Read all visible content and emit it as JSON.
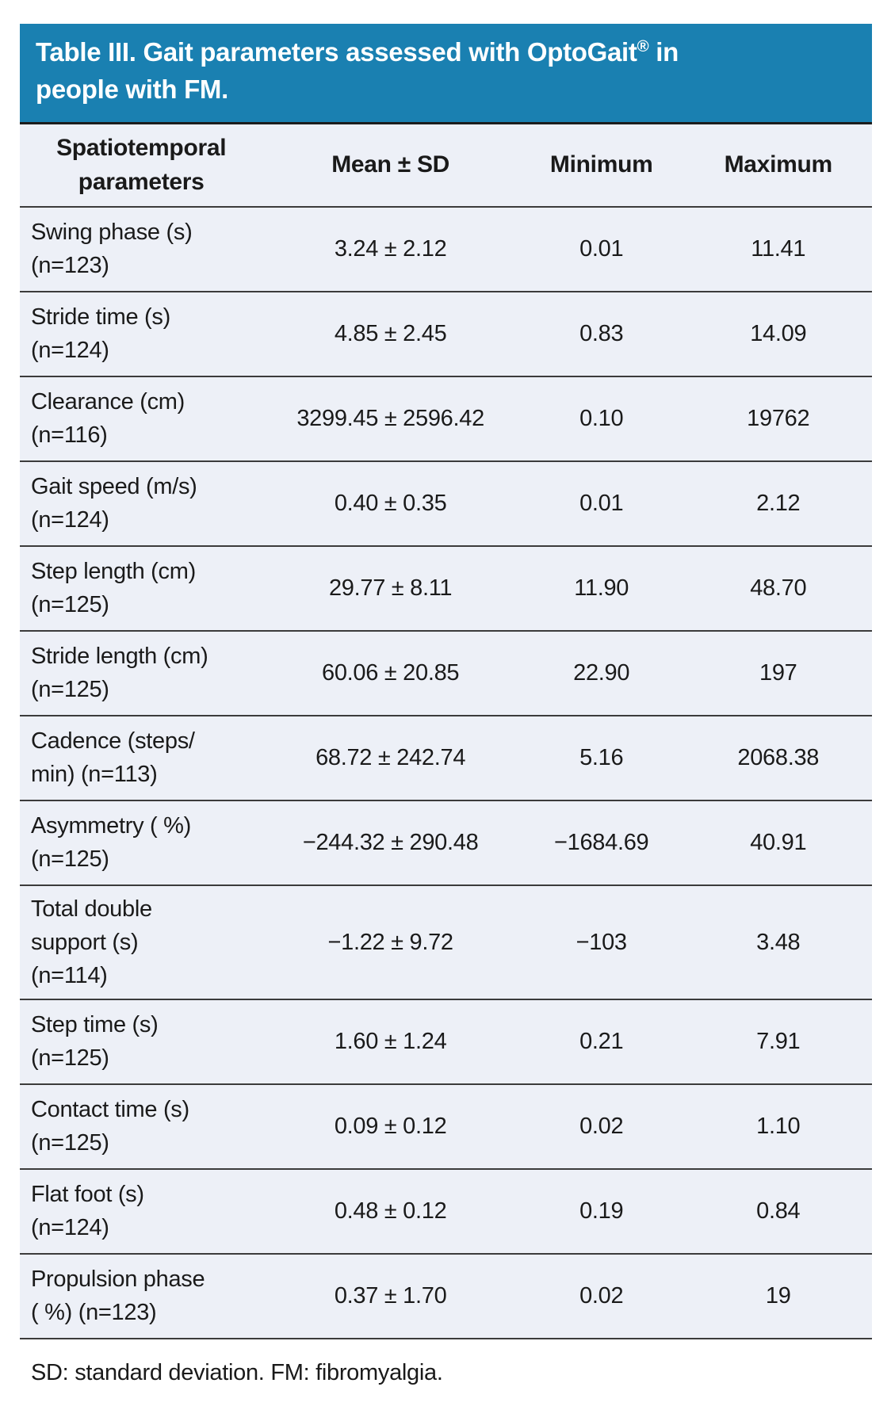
{
  "table": {
    "title": {
      "line1_pre": "Table III. Gait parameters assessed with OptoGait",
      "line1_sup": "®",
      "line1_post": " in",
      "line2": "people with FM."
    },
    "columns": {
      "param": [
        "Spatiotemporal",
        "parameters"
      ],
      "mean_sd": "Mean ± SD",
      "minimum": "Minimum",
      "maximum": "Maximum"
    },
    "rows": [
      {
        "param": [
          "Swing phase (s)",
          "(n=123)"
        ],
        "mean_sd": "3.24 ± 2.12",
        "min": "0.01",
        "max": "11.41"
      },
      {
        "param": [
          "Stride time (s)",
          "(n=124)"
        ],
        "mean_sd": "4.85 ± 2.45",
        "min": "0.83",
        "max": "14.09"
      },
      {
        "param": [
          "Clearance (cm)",
          "(n=116)"
        ],
        "mean_sd": "3299.45 ± 2596.42",
        "min": "0.10",
        "max": "19762"
      },
      {
        "param": [
          "Gait speed (m/s)",
          "(n=124)"
        ],
        "mean_sd": "0.40 ± 0.35",
        "min": "0.01",
        "max": "2.12"
      },
      {
        "param": [
          "Step length (cm)",
          "(n=125)"
        ],
        "mean_sd": "29.77 ± 8.11",
        "min": "11.90",
        "max": "48.70"
      },
      {
        "param": [
          "Stride length (cm)",
          "(n=125)"
        ],
        "mean_sd": "60.06 ± 20.85",
        "min": "22.90",
        "max": "197"
      },
      {
        "param": [
          "Cadence (steps/",
          "min) (n=113)"
        ],
        "mean_sd": "68.72 ± 242.74",
        "min": "5.16",
        "max": "2068.38"
      },
      {
        "param": [
          "Asymmetry ( %)",
          "(n=125)"
        ],
        "mean_sd": "−244.32 ± 290.48",
        "min": "−1684.69",
        "max": "40.91"
      },
      {
        "param": [
          "Total double",
          "support (s)",
          "(n=114)"
        ],
        "mean_sd": "−1.22 ± 9.72",
        "min": "−103",
        "max": "3.48"
      },
      {
        "param": [
          "Step time (s)",
          "(n=125)"
        ],
        "mean_sd": "1.60 ± 1.24",
        "min": "0.21",
        "max": "7.91"
      },
      {
        "param": [
          "Contact time (s)",
          "(n=125)"
        ],
        "mean_sd": "0.09 ± 0.12",
        "min": "0.02",
        "max": "1.10"
      },
      {
        "param": [
          "Flat foot (s)",
          "(n=124)"
        ],
        "mean_sd": "0.48 ± 0.12",
        "min": "0.19",
        "max": "0.84"
      },
      {
        "param": [
          "Propulsion phase",
          "( %) (n=123)"
        ],
        "mean_sd": "0.37 ± 1.70",
        "min": "0.02",
        "max": "19"
      }
    ],
    "footnote": "SD: standard deviation. FM: fibromyalgia."
  },
  "colors": {
    "header_blue": "#1A80B1",
    "row_bg": "#EDF0F7",
    "divider": "#3B3B3B",
    "text": "#1A1A1A"
  }
}
